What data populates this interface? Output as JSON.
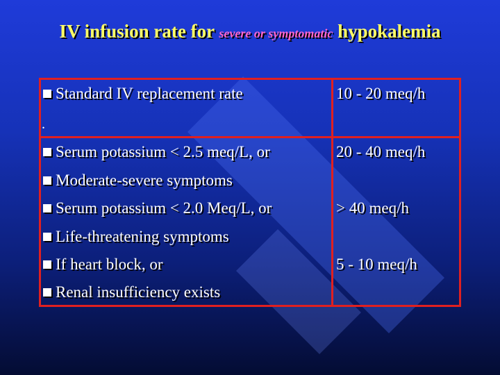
{
  "title": {
    "part1": "IV infusion rate for",
    "part2": "severe or symptomatic",
    "part3": "hypokalemia"
  },
  "table": {
    "standard_label": "Standard IV replacement rate",
    "standard_rate": "10 - 20 meq/h",
    "dot": ".",
    "rows": [
      {
        "text": "Serum potassium < 2.5 meq/L, or",
        "rate": "20 - 40 meq/h"
      },
      {
        "text": "Moderate-severe symptoms",
        "rate": ""
      },
      {
        "text": "Serum potassium < 2.0 Meq/L, or",
        "rate": "> 40 meq/h"
      },
      {
        "text": "Life-threatening symptoms",
        "rate": ""
      },
      {
        "text": "If heart block, or",
        "rate": "5 - 10 meq/h"
      },
      {
        "text": "Renal insufficiency exists",
        "rate": ""
      }
    ]
  },
  "colors": {
    "background": "#1f3bd9",
    "title": "#ffff66",
    "title_emphasis": "#ff66cc",
    "border": "#e02020",
    "text": "#ffffff"
  },
  "icons": [
    "square-bullet-icon"
  ]
}
